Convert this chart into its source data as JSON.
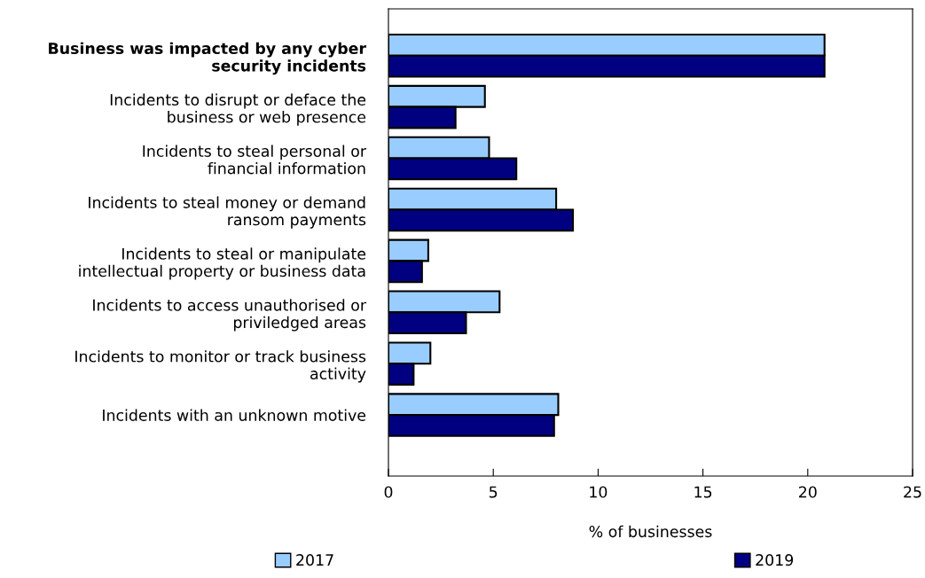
{
  "chart_data": {
    "type": "bar",
    "orientation": "horizontal",
    "xlabel": "% of businesses",
    "categories": [
      "Business was impacted by any cyber\nsecurity incidents",
      "Incidents to disrupt or deface the\nbusiness or web presence",
      "Incidents to steal personal or\nfinancial information",
      "Incidents to steal money or demand\nransom payments",
      "Incidents to steal or manipulate\nintellectual property or business data",
      "Incidents to access unauthorised or\npriviledged areas",
      "Incidents to monitor or track business\nactivity",
      "Incidents with an unknown motive"
    ],
    "series": [
      {
        "name": "2017",
        "color": "#99ccff",
        "values": [
          20.8,
          4.6,
          4.8,
          8.0,
          1.9,
          5.3,
          2.0,
          8.1
        ]
      },
      {
        "name": "2019",
        "color": "#000080",
        "values": [
          20.8,
          3.2,
          6.1,
          8.8,
          1.6,
          3.7,
          1.2,
          7.9
        ]
      }
    ],
    "xlim": [
      0,
      25
    ],
    "xticks": [
      0,
      5,
      10,
      15,
      20,
      25
    ],
    "grid": false,
    "legend": "bottom"
  }
}
